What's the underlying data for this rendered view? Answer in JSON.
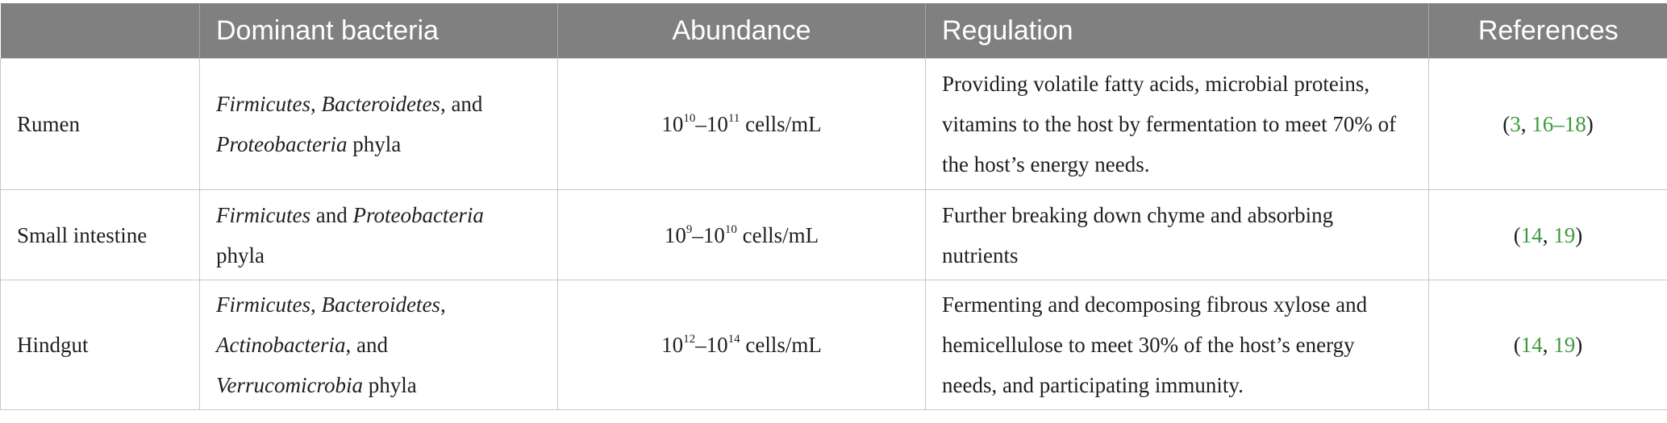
{
  "headers": [
    "",
    "Dominant bacteria",
    "Abundance",
    "Regulation",
    "References"
  ],
  "rows": [
    {
      "site": "Rumen",
      "bacteria": {
        "parts": [
          "Firmicutes",
          ", ",
          "Bacteroidetes",
          ", and",
          "Proteobacteria",
          " phyla"
        ]
      },
      "abundance": {
        "base1": "10",
        "exp1": "10",
        "dash": "–",
        "base2": "10",
        "exp2": "11",
        "unit": " cells/mL"
      },
      "regulation": "Providing volatile fatty acids, microbial proteins, vitamins to the host by fermentation to meet 70% of the host’s energy needs.",
      "references": {
        "open": "(",
        "r1": "3",
        "sep1": ", ",
        "r2": "16",
        "dash": "–",
        "r3": "18",
        "close": ")"
      }
    },
    {
      "site": "Small intestine",
      "bacteria": {
        "parts": [
          "Firmicutes",
          " and ",
          "Proteobacteria",
          "phyla"
        ]
      },
      "abundance": {
        "base1": "10",
        "exp1": "9",
        "dash": "–",
        "base2": "10",
        "exp2": "10",
        "unit": " cells/mL"
      },
      "regulation": "Further breaking down chyme and absorbing nutrients",
      "references": {
        "open": "(",
        "r1": "14",
        "sep1": ", ",
        "r2": "19",
        "close": ")"
      }
    },
    {
      "site": "Hindgut",
      "bacteria": {
        "parts": [
          "Firmicutes",
          ", ",
          "Bacteroidetes",
          ",",
          "Actinobacteria",
          ", and",
          "Verrucomicrobia",
          " phyla"
        ]
      },
      "abundance": {
        "base1": "10",
        "exp1": "12",
        "dash": "–",
        "base2": "10",
        "exp2": "14",
        "unit": " cells/mL"
      },
      "regulation": "Fermenting and decomposing fibrous xylose and hemicellulose to meet 30% of the host’s energy needs, and participating immunity.",
      "references": {
        "open": "(",
        "r1": "14",
        "sep1": ", ",
        "r2": "19",
        "close": ")"
      }
    }
  ],
  "colors": {
    "header_bg": "#808080",
    "header_text": "#ffffff",
    "link": "#3d9a3d",
    "grid": "#c8c8c8"
  }
}
